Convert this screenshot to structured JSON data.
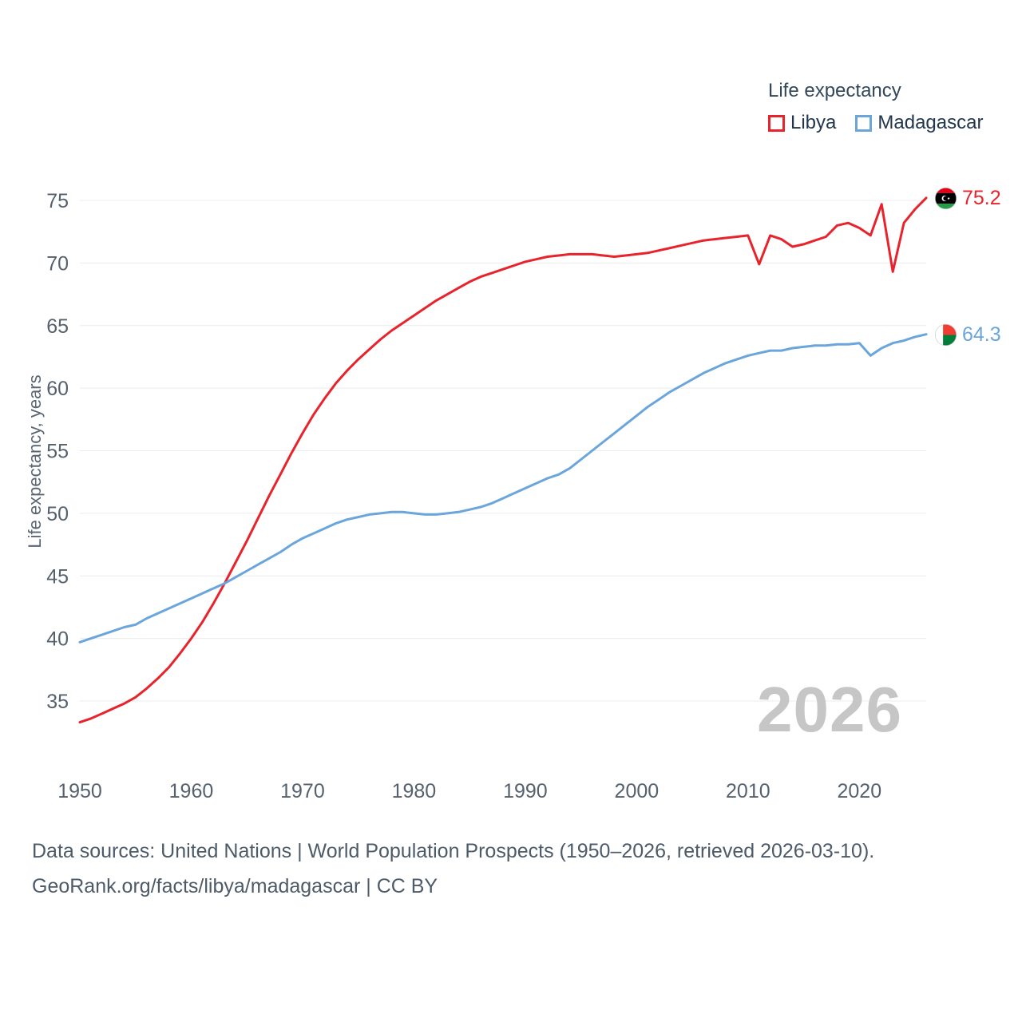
{
  "legend": {
    "title": "Life expectancy",
    "items": [
      {
        "label": "Libya",
        "color": "#e8232c"
      },
      {
        "label": "Madagascar",
        "color": "#6aa5dc"
      }
    ]
  },
  "watermark": "2026",
  "footer": {
    "line1": "Data sources: United Nations | World Population Prospects (1950–2026, retrieved 2026-03-10).",
    "line2": "GeoRank.org/facts/libya/madagascar | CC BY"
  },
  "chart_data": {
    "type": "line",
    "title": "Life expectancy",
    "xlabel": "",
    "ylabel": "Life expectancy, years",
    "x_start": 1950,
    "x_end": 2026,
    "ylim": [
      32,
      77
    ],
    "yticks": [
      35,
      40,
      45,
      50,
      55,
      60,
      65,
      70,
      75
    ],
    "xticks": [
      1950,
      1960,
      1970,
      1980,
      1990,
      2000,
      2010,
      2020
    ],
    "grid": "horizontal",
    "legend_position": "top-right",
    "series": [
      {
        "name": "Libya",
        "color": "#e8232c",
        "end_label": "75.2",
        "values": [
          33.3,
          33.6,
          34.0,
          34.4,
          34.8,
          35.3,
          36.0,
          36.8,
          37.7,
          38.8,
          40.0,
          41.3,
          42.8,
          44.4,
          46.1,
          47.8,
          49.6,
          51.4,
          53.1,
          54.8,
          56.4,
          57.9,
          59.2,
          60.4,
          61.4,
          62.3,
          63.1,
          63.9,
          64.6,
          65.2,
          65.8,
          66.4,
          67.0,
          67.5,
          68.0,
          68.5,
          68.9,
          69.2,
          69.5,
          69.8,
          70.1,
          70.3,
          70.5,
          70.6,
          70.7,
          70.7,
          70.7,
          70.6,
          70.5,
          70.6,
          70.7,
          70.8,
          71.0,
          71.2,
          71.4,
          71.6,
          71.8,
          71.9,
          72.0,
          72.1,
          72.2,
          69.9,
          72.2,
          71.9,
          71.3,
          71.5,
          71.8,
          72.1,
          73.0,
          73.2,
          72.8,
          72.2,
          74.7,
          69.3,
          73.2,
          74.3,
          75.2
        ]
      },
      {
        "name": "Madagascar",
        "color": "#6aa5dc",
        "end_label": "64.3",
        "values": [
          39.7,
          40.0,
          40.3,
          40.6,
          40.9,
          41.1,
          41.6,
          42.0,
          42.4,
          42.8,
          43.2,
          43.6,
          44.0,
          44.4,
          44.9,
          45.4,
          45.9,
          46.4,
          46.9,
          47.5,
          48.0,
          48.4,
          48.8,
          49.2,
          49.5,
          49.7,
          49.9,
          50.0,
          50.1,
          50.1,
          50.0,
          49.9,
          49.9,
          50.0,
          50.1,
          50.3,
          50.5,
          50.8,
          51.2,
          51.6,
          52.0,
          52.4,
          52.8,
          53.1,
          53.6,
          54.3,
          55.0,
          55.7,
          56.4,
          57.1,
          57.8,
          58.5,
          59.1,
          59.7,
          60.2,
          60.7,
          61.2,
          61.6,
          62.0,
          62.3,
          62.6,
          62.8,
          63.0,
          63.0,
          63.2,
          63.3,
          63.4,
          63.4,
          63.5,
          63.5,
          63.6,
          62.6,
          63.2,
          63.6,
          63.8,
          64.1,
          64.3
        ]
      }
    ]
  }
}
